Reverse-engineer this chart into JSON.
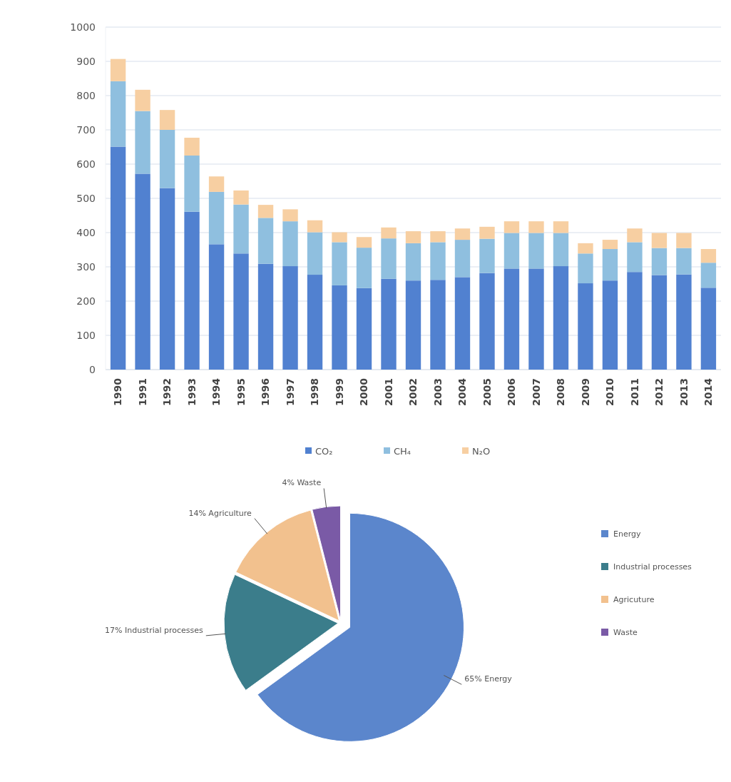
{
  "chart_data": [
    {
      "type": "bar",
      "stacked": true,
      "categories": [
        "1990",
        "1991",
        "1992",
        "1993",
        "1994",
        "1995",
        "1996",
        "1997",
        "1998",
        "1999",
        "2000",
        "2001",
        "2002",
        "2003",
        "2004",
        "2005",
        "2006",
        "2007",
        "2008",
        "2009",
        "2010",
        "2011",
        "2012",
        "2013",
        "2014"
      ],
      "series": [
        {
          "name": "CO₂",
          "color": "#5181d0",
          "values": [
            651,
            572,
            530,
            461,
            366,
            339,
            309,
            302,
            277,
            246,
            238,
            265,
            260,
            262,
            270,
            282,
            295,
            295,
            302,
            252,
            260,
            285,
            276,
            278,
            239
          ]
        },
        {
          "name": "CH₄",
          "color": "#8fbfdf",
          "values": [
            191,
            183,
            170,
            164,
            153,
            143,
            134,
            131,
            124,
            126,
            118,
            118,
            109,
            110,
            109,
            100,
            104,
            104,
            97,
            87,
            92,
            87,
            79,
            77,
            73
          ]
        },
        {
          "name": "N₂O",
          "color": "#f7cfa2",
          "values": [
            65,
            62,
            58,
            52,
            45,
            41,
            38,
            35,
            35,
            29,
            31,
            32,
            35,
            32,
            33,
            35,
            34,
            34,
            34,
            30,
            27,
            40,
            44,
            44,
            40
          ]
        }
      ],
      "ylim": [
        0,
        1000
      ],
      "yticks": [
        0,
        100,
        200,
        300,
        400,
        500,
        600,
        700,
        800,
        900,
        1000
      ],
      "grid": "y",
      "legend": "bottom"
    },
    {
      "type": "pie",
      "categories": [
        "Energy",
        "Industrial processes",
        "Agricuture",
        "Waste"
      ],
      "values": [
        65,
        17,
        14,
        4
      ],
      "colors": [
        "#5b86cc",
        "#3b7d8b",
        "#f2c18e",
        "#7a5aa6"
      ],
      "value_labels": [
        "65% Energy",
        "17% Industrial processes",
        "14% Agriculture",
        "4% Waste"
      ],
      "legend": "right"
    }
  ]
}
